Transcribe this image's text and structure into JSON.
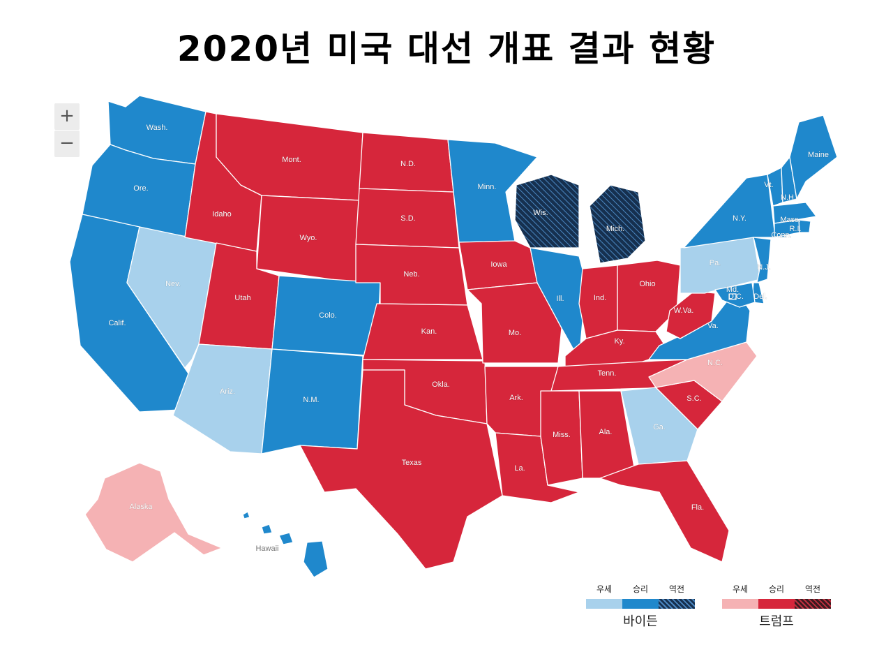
{
  "title": "2020년 미국 대선 개표 결과 현황",
  "zoom": {
    "in_label": "+",
    "out_label": "−"
  },
  "colors": {
    "biden_lead": "#a8d1ec",
    "biden_win": "#1f88cc",
    "biden_flip": "#16304f",
    "trump_lead": "#f5b2b4",
    "trump_win": "#d6263b",
    "trump_flip": "#3c1a1f"
  },
  "legend": {
    "biden": {
      "name": "바이든",
      "headers": [
        "우세",
        "승리",
        "역전"
      ]
    },
    "trump": {
      "name": "트럼프",
      "headers": [
        "우세",
        "승리",
        "역전"
      ]
    }
  },
  "states": [
    {
      "abbr": "Wash.",
      "status": "biden_win"
    },
    {
      "abbr": "Ore.",
      "status": "biden_win"
    },
    {
      "abbr": "Calif.",
      "status": "biden_win"
    },
    {
      "abbr": "Nev.",
      "status": "biden_lead"
    },
    {
      "abbr": "Idaho",
      "status": "trump_win"
    },
    {
      "abbr": "Mont.",
      "status": "trump_win"
    },
    {
      "abbr": "Wyo.",
      "status": "trump_win"
    },
    {
      "abbr": "Utah",
      "status": "trump_win"
    },
    {
      "abbr": "Ariz.",
      "status": "biden_lead"
    },
    {
      "abbr": "Colo.",
      "status": "biden_win"
    },
    {
      "abbr": "N.M.",
      "status": "biden_win"
    },
    {
      "abbr": "N.D.",
      "status": "trump_win"
    },
    {
      "abbr": "S.D.",
      "status": "trump_win"
    },
    {
      "abbr": "Neb.",
      "status": "trump_win"
    },
    {
      "abbr": "Kan.",
      "status": "trump_win"
    },
    {
      "abbr": "Okla.",
      "status": "trump_win"
    },
    {
      "abbr": "Texas",
      "status": "trump_win"
    },
    {
      "abbr": "Minn.",
      "status": "biden_win"
    },
    {
      "abbr": "Iowa",
      "status": "trump_win"
    },
    {
      "abbr": "Mo.",
      "status": "trump_win"
    },
    {
      "abbr": "Ark.",
      "status": "trump_win"
    },
    {
      "abbr": "La.",
      "status": "trump_win"
    },
    {
      "abbr": "Wis.",
      "status": "biden_flip"
    },
    {
      "abbr": "Ill.",
      "status": "biden_win"
    },
    {
      "abbr": "Mich.",
      "status": "biden_flip"
    },
    {
      "abbr": "Ind.",
      "status": "trump_win"
    },
    {
      "abbr": "Ohio",
      "status": "trump_win"
    },
    {
      "abbr": "Ky.",
      "status": "trump_win"
    },
    {
      "abbr": "Tenn.",
      "status": "trump_win"
    },
    {
      "abbr": "Miss.",
      "status": "trump_win"
    },
    {
      "abbr": "Ala.",
      "status": "trump_win"
    },
    {
      "abbr": "Ga.",
      "status": "biden_lead"
    },
    {
      "abbr": "Fla.",
      "status": "trump_win"
    },
    {
      "abbr": "S.C.",
      "status": "trump_win"
    },
    {
      "abbr": "N.C.",
      "status": "trump_lead"
    },
    {
      "abbr": "Va.",
      "status": "biden_win"
    },
    {
      "abbr": "W.Va.",
      "status": "trump_win"
    },
    {
      "abbr": "Pa.",
      "status": "biden_lead"
    },
    {
      "abbr": "N.Y.",
      "status": "biden_win"
    },
    {
      "abbr": "Vt.",
      "status": "biden_win"
    },
    {
      "abbr": "N.H.",
      "status": "biden_win"
    },
    {
      "abbr": "Maine",
      "status": "biden_win"
    },
    {
      "abbr": "Mass.",
      "status": "biden_win"
    },
    {
      "abbr": "R.I.",
      "status": "biden_win"
    },
    {
      "abbr": "Conn.",
      "status": "biden_win"
    },
    {
      "abbr": "N.J.",
      "status": "biden_win"
    },
    {
      "abbr": "Del.",
      "status": "biden_win"
    },
    {
      "abbr": "Md.",
      "status": "biden_win"
    },
    {
      "abbr": "D.C.",
      "status": "biden_win"
    },
    {
      "abbr": "Alaska",
      "status": "trump_lead"
    },
    {
      "abbr": "Hawaii",
      "status": "biden_win"
    }
  ]
}
